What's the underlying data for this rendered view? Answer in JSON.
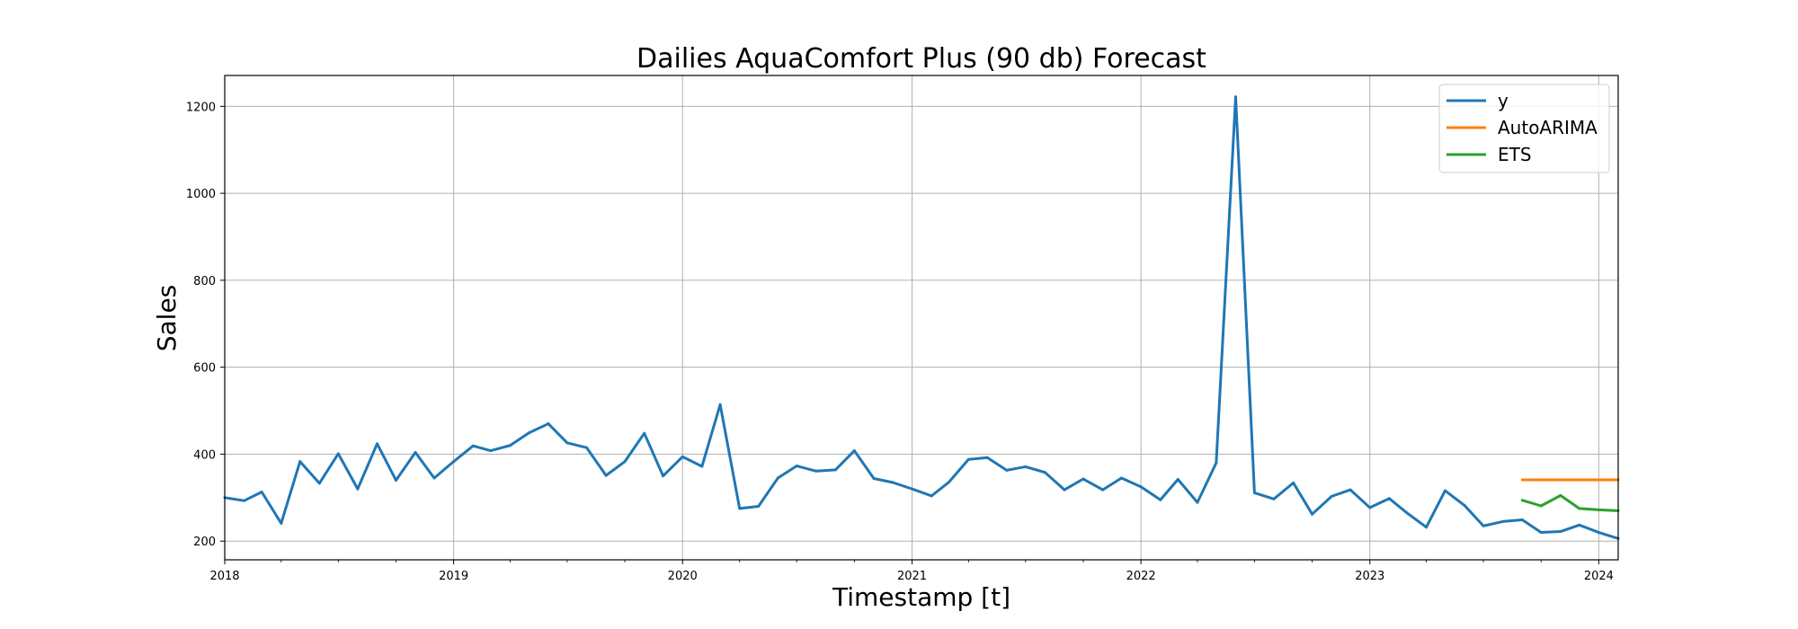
{
  "chart_data": {
    "type": "line",
    "title": "Dailies AquaComfort Plus (90 db) Forecast",
    "xlabel": "Timestamp [t]",
    "ylabel": "Sales",
    "xlim": [
      "2018-01-01",
      "2024-02-01"
    ],
    "ylim": [
      157,
      1271
    ],
    "yticks": [
      200,
      400,
      600,
      800,
      1000,
      1200
    ],
    "xticks": [
      {
        "date": "2018-01-01",
        "label": "2018"
      },
      {
        "date": "2019-01-01",
        "label": "2019"
      },
      {
        "date": "2020-01-01",
        "label": "2020"
      },
      {
        "date": "2021-01-01",
        "label": "2021"
      },
      {
        "date": "2022-01-01",
        "label": "2022"
      },
      {
        "date": "2023-01-01",
        "label": "2023"
      },
      {
        "date": "2024-01-01",
        "label": "2024"
      }
    ],
    "grid": true,
    "legend_position": "top-right",
    "series": [
      {
        "name": "y",
        "color": "#1f77b4",
        "x": [
          "2018-01-01",
          "2018-02-01",
          "2018-03-01",
          "2018-04-01",
          "2018-05-01",
          "2018-06-01",
          "2018-07-01",
          "2018-08-01",
          "2018-09-01",
          "2018-10-01",
          "2018-11-01",
          "2018-12-01",
          "2019-01-01",
          "2019-02-01",
          "2019-03-01",
          "2019-04-01",
          "2019-05-01",
          "2019-06-01",
          "2019-07-01",
          "2019-08-01",
          "2019-09-01",
          "2019-10-01",
          "2019-11-01",
          "2019-12-01",
          "2020-01-01",
          "2020-02-01",
          "2020-03-01",
          "2020-04-01",
          "2020-05-01",
          "2020-06-01",
          "2020-07-01",
          "2020-08-01",
          "2020-09-01",
          "2020-10-01",
          "2020-11-01",
          "2020-12-01",
          "2021-01-01",
          "2021-02-01",
          "2021-03-01",
          "2021-04-01",
          "2021-05-01",
          "2021-06-01",
          "2021-07-01",
          "2021-08-01",
          "2021-09-01",
          "2021-10-01",
          "2021-11-01",
          "2021-12-01",
          "2022-01-01",
          "2022-02-01",
          "2022-03-01",
          "2022-04-01",
          "2022-05-01",
          "2022-06-01",
          "2022-07-01",
          "2022-08-01",
          "2022-09-01",
          "2022-10-01",
          "2022-11-01",
          "2022-12-01",
          "2023-01-01",
          "2023-02-01",
          "2023-03-01",
          "2023-04-01",
          "2023-05-01",
          "2023-06-01",
          "2023-07-01",
          "2023-08-01",
          "2023-09-01",
          "2023-10-01",
          "2023-11-01",
          "2023-12-01",
          "2024-01-01",
          "2024-02-01"
        ],
        "values": [
          300,
          293,
          313,
          241,
          383,
          333,
          401,
          320,
          424,
          340,
          404,
          345,
          383,
          419,
          408,
          420,
          449,
          470,
          426,
          415,
          351,
          383,
          448,
          350,
          394,
          372,
          514,
          275,
          280,
          345,
          373,
          361,
          364,
          408,
          344,
          335,
          320,
          304,
          336,
          388,
          392,
          363,
          371,
          358,
          318,
          343,
          318,
          345,
          325,
          295,
          342,
          289,
          380,
          1222,
          311,
          297,
          334,
          262,
          303,
          318,
          277,
          298,
          265,
          232,
          316,
          282,
          235,
          245,
          249,
          220,
          222,
          237,
          220,
          206
        ]
      },
      {
        "name": "AutoARIMA",
        "color": "#ff7f0e",
        "x": [
          "2023-09-01",
          "2023-10-01",
          "2023-11-01",
          "2023-12-01",
          "2024-01-01",
          "2024-02-01"
        ],
        "values": [
          341,
          341,
          341,
          341,
          341,
          341
        ]
      },
      {
        "name": "ETS",
        "color": "#2ca02c",
        "x": [
          "2023-09-01",
          "2023-10-01",
          "2023-11-01",
          "2023-12-01",
          "2024-01-01",
          "2024-02-01"
        ],
        "values": [
          294,
          281,
          305,
          275,
          272,
          270
        ]
      }
    ]
  }
}
